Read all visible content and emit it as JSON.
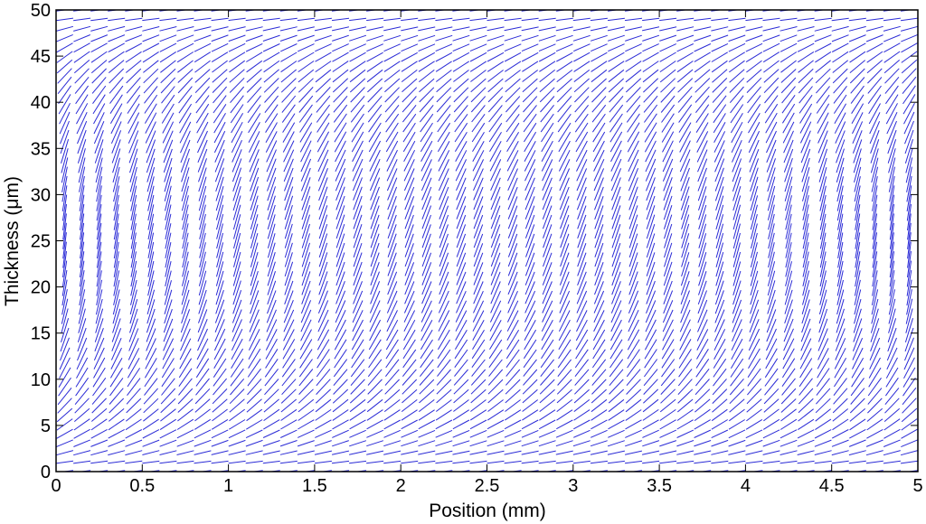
{
  "chart_data": {
    "type": "quiver",
    "title": "",
    "xlabel": "Position (mm)",
    "ylabel": "Thickness (μm)",
    "xlim": [
      0,
      5
    ],
    "ylim": [
      0,
      50
    ],
    "x_ticks": [
      "0",
      "0.5",
      "1",
      "1.5",
      "2",
      "2.5",
      "3",
      "3.5",
      "4",
      "4.5",
      "5"
    ],
    "y_ticks": [
      "0",
      "5",
      "10",
      "15",
      "20",
      "25",
      "30",
      "35",
      "40",
      "45",
      "50"
    ],
    "grid": false,
    "legend": "none",
    "line_color": "#2b2bd6",
    "field": {
      "description_rows": "director segments on a regular grid",
      "x_count": 50,
      "y_count": 50,
      "x_range": [
        0.05,
        4.95
      ],
      "y_range": [
        0.0,
        50.0
      ],
      "tilt_at_surfaces_deg": 0,
      "tilt_at_center_deg": 60,
      "segment_length_mm": 0.1
    }
  }
}
